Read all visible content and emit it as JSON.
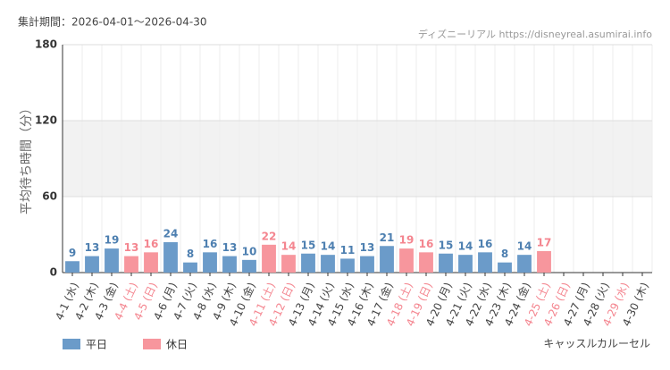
{
  "chart_data": {
    "type": "bar",
    "period": "集計期間：2026-04-01〜2026-04-30",
    "source": "ディズニーリアル https://disneyreal.asumirai.info",
    "ylabel": "平均待ち時間（分）",
    "attraction": "キャッスルカルーセル",
    "categories": [
      "4-1 (水)",
      "4-2 (木)",
      "4-3 (金)",
      "4-4 (土)",
      "4-5 (日)",
      "4-6 (月)",
      "4-7 (火)",
      "4-8 (水)",
      "4-9 (木)",
      "4-10 (金)",
      "4-11 (土)",
      "4-12 (日)",
      "4-13 (月)",
      "4-14 (火)",
      "4-15 (水)",
      "4-16 (木)",
      "4-17 (金)",
      "4-18 (土)",
      "4-19 (日)",
      "4-20 (月)",
      "4-21 (火)",
      "4-22 (水)",
      "4-23 (木)",
      "4-24 (金)",
      "4-25 (土)",
      "4-26 (日)",
      "4-27 (月)",
      "4-28 (火)",
      "4-29 (水)",
      "4-30 (木)"
    ],
    "category_colors": [
      "#444",
      "#444",
      "#444",
      "#f4858f",
      "#f4858f",
      "#444",
      "#444",
      "#444",
      "#444",
      "#444",
      "#f4858f",
      "#f4858f",
      "#444",
      "#444",
      "#444",
      "#444",
      "#444",
      "#f4858f",
      "#f4858f",
      "#444",
      "#444",
      "#444",
      "#444",
      "#444",
      "#f4858f",
      "#f4858f",
      "#444",
      "#444",
      "#f4858f",
      "#444"
    ],
    "series": [
      {
        "name": "平日",
        "color": "#6b9bc9",
        "label_color": "#4d7fb0",
        "values": [
          9,
          13,
          19,
          null,
          null,
          24,
          8,
          16,
          13,
          10,
          null,
          null,
          15,
          14,
          11,
          13,
          21,
          null,
          null,
          15,
          14,
          16,
          8,
          14,
          null,
          null,
          null,
          null,
          null,
          null
        ]
      },
      {
        "name": "休日",
        "color": "#f7969d",
        "label_color": "#f4858f",
        "values": [
          null,
          null,
          null,
          13,
          16,
          null,
          null,
          null,
          null,
          null,
          22,
          14,
          null,
          null,
          null,
          null,
          null,
          19,
          16,
          null,
          null,
          null,
          null,
          null,
          17,
          null,
          null,
          null,
          null,
          null
        ]
      }
    ],
    "ylim": [
      0,
      180
    ],
    "yticks": [
      0,
      60,
      120,
      180
    ],
    "shaded_band": [
      60,
      120
    ],
    "grid": true
  }
}
